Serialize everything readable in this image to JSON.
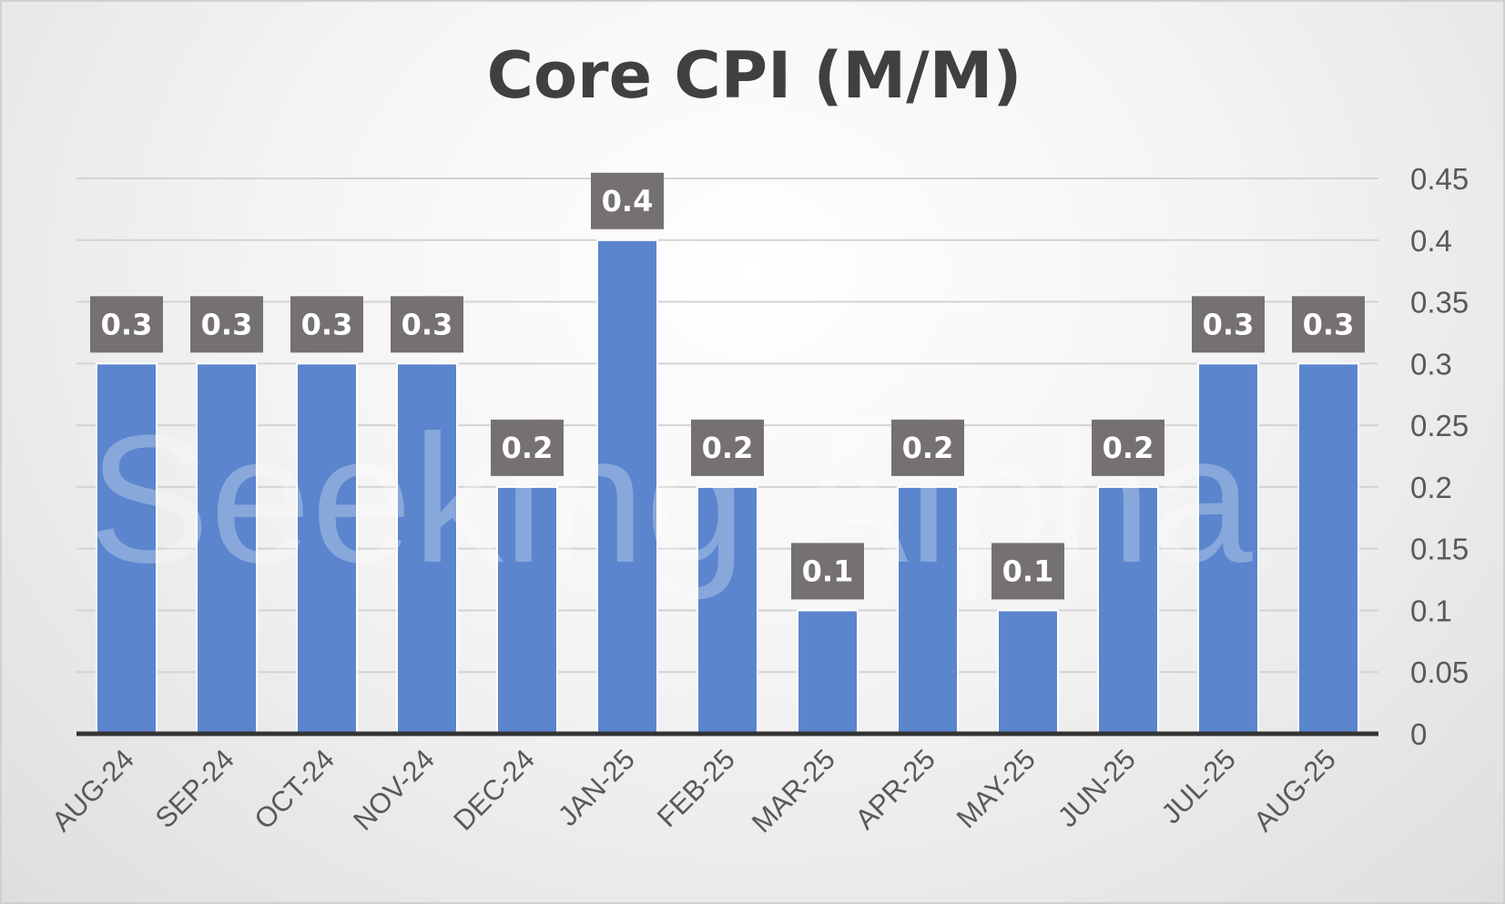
{
  "chart_data": {
    "type": "bar",
    "title": "Core CPI (M/M)",
    "categories": [
      "AUG-24",
      "SEP-24",
      "OCT-24",
      "NOV-24",
      "DEC-24",
      "JAN-25",
      "FEB-25",
      "MAR-25",
      "APR-25",
      "MAY-25",
      "JUN-25",
      "JUL-25",
      "AUG-25"
    ],
    "series": [
      {
        "values": [
          0.3,
          0.3,
          0.3,
          0.3,
          0.2,
          0.4,
          0.2,
          0.1,
          0.2,
          0.1,
          0.2,
          0.3,
          0.3
        ]
      }
    ],
    "data_labels": [
      "0.3",
      "0.3",
      "0.3",
      "0.3",
      "0.2",
      "0.4",
      "0.2",
      "0.1",
      "0.2",
      "0.1",
      "0.2",
      "0.3",
      "0.3"
    ],
    "ylim": [
      0,
      0.45
    ],
    "y_ticks": [
      "0",
      "0.05",
      "0.1",
      "0.15",
      "0.2",
      "0.25",
      "0.3",
      "0.35",
      "0.4",
      "0.45"
    ],
    "y_axis_position": "right",
    "xlabel": "",
    "ylabel": "",
    "grid": true,
    "legend": "none",
    "watermark": "Seeking Alpha",
    "colors": {
      "bar": "#5B85CD",
      "bar_edge": "#ffffff",
      "label_box": "#767171",
      "label_text": "#ffffff",
      "gridline": "#d3d3d3",
      "axis_line": "#333333",
      "title": "#404040",
      "tick_text": "#595959"
    }
  }
}
